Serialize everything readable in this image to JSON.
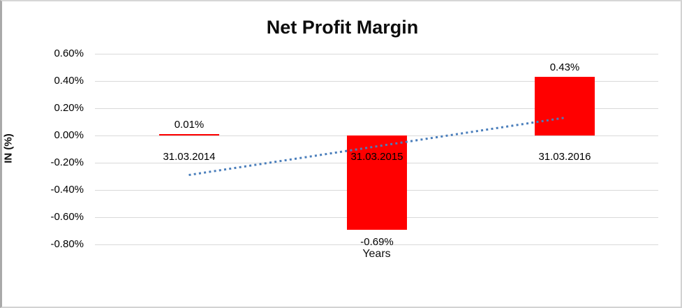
{
  "frame": {
    "background": "#ffffff",
    "border_color": "#d2d2d2"
  },
  "chart_data": {
    "type": "bar",
    "title": "Net Profit Margin",
    "xlabel": "Years",
    "ylabel": "IN (%)",
    "categories": [
      "31.03.2014",
      "31.03.2015",
      "31.03.2016"
    ],
    "values": [
      0.01,
      -0.69,
      0.43
    ],
    "data_labels": [
      "0.01%",
      "-0.69%",
      "0.43%"
    ],
    "y_tick_values": [
      0.6,
      0.4,
      0.2,
      0.0,
      -0.2,
      -0.4,
      -0.6,
      -0.8
    ],
    "y_tick_labels": [
      "0.60%",
      "0.40%",
      "0.20%",
      "0.00%",
      "-0.20%",
      "-0.40%",
      "-0.60%",
      "-0.80%"
    ],
    "ylim": [
      -0.8,
      0.6
    ],
    "grid": true,
    "legend": "none",
    "bar_color": "#ff0000",
    "gridline_color": "#d9d9d9",
    "trendline": {
      "type": "linear",
      "style": "dotted",
      "color": "#4a7ebb",
      "start_value": -0.29,
      "end_value": 0.13
    }
  }
}
